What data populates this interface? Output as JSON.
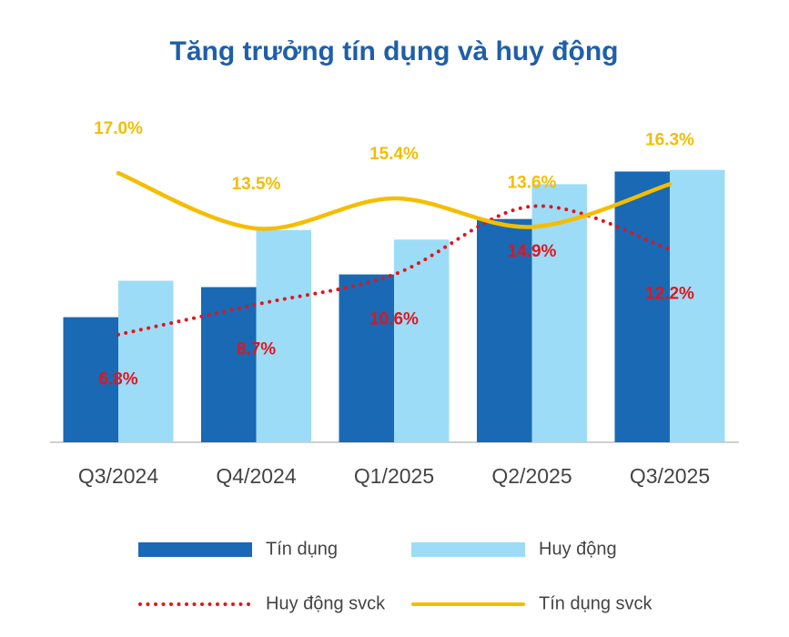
{
  "chart_data": {
    "type": "bar_line",
    "title": "Tăng trưởng tín dụng và huy động",
    "categories": [
      "Q3/2024",
      "Q4/2024",
      "Q1/2025",
      "Q2/2025",
      "Q3/2025"
    ],
    "ylim": [
      0,
      20
    ],
    "y2lim": [
      0,
      20
    ],
    "legend": "bottom",
    "series": [
      {
        "name": "Tín dụng",
        "type": "bar",
        "color": "#1a69b4",
        "values": [
          7.9,
          9.8,
          10.6,
          14.1,
          17.1
        ]
      },
      {
        "name": "Huy động",
        "type": "bar",
        "color": "#9ddcf7",
        "values": [
          10.2,
          13.4,
          12.8,
          16.3,
          17.2
        ]
      },
      {
        "name": "Huy động svck",
        "type": "line",
        "axis": "y2",
        "style": "dotted",
        "color": "#e3141b",
        "label_position": "below",
        "values": [
          6.8,
          8.7,
          10.6,
          14.9,
          12.2
        ],
        "value_labels": [
          "6.8%",
          "8.7%",
          "10.6%",
          "14.9%",
          "12.2%"
        ]
      },
      {
        "name": "Tín dụng svck",
        "type": "line",
        "axis": "y2",
        "style": "solid",
        "color": "#f5bd00",
        "label_position": "above",
        "values": [
          17.0,
          13.5,
          15.4,
          13.6,
          16.3
        ],
        "value_labels": [
          "17.0%",
          "13.5%",
          "15.4%",
          "13.6%",
          "16.3%"
        ]
      }
    ]
  }
}
